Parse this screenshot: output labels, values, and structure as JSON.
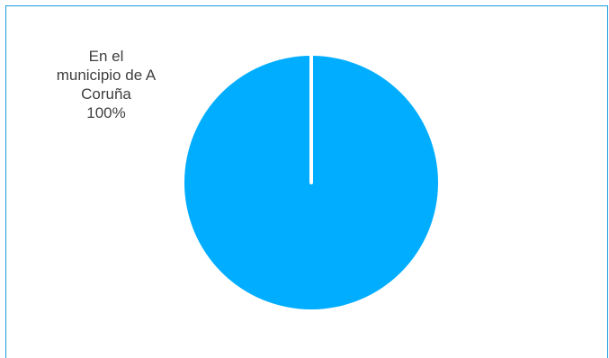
{
  "chart_data": {
    "type": "pie",
    "slices": [
      {
        "label_lines": [
          "En el",
          "municipio de A",
          "Coruña"
        ],
        "percent_label": "100%",
        "value": 100,
        "color": "#00adff"
      }
    ],
    "legend": "none"
  },
  "colors": {
    "border": "#1a9be0",
    "label_text": "#404040",
    "separator": "#ffffff"
  }
}
